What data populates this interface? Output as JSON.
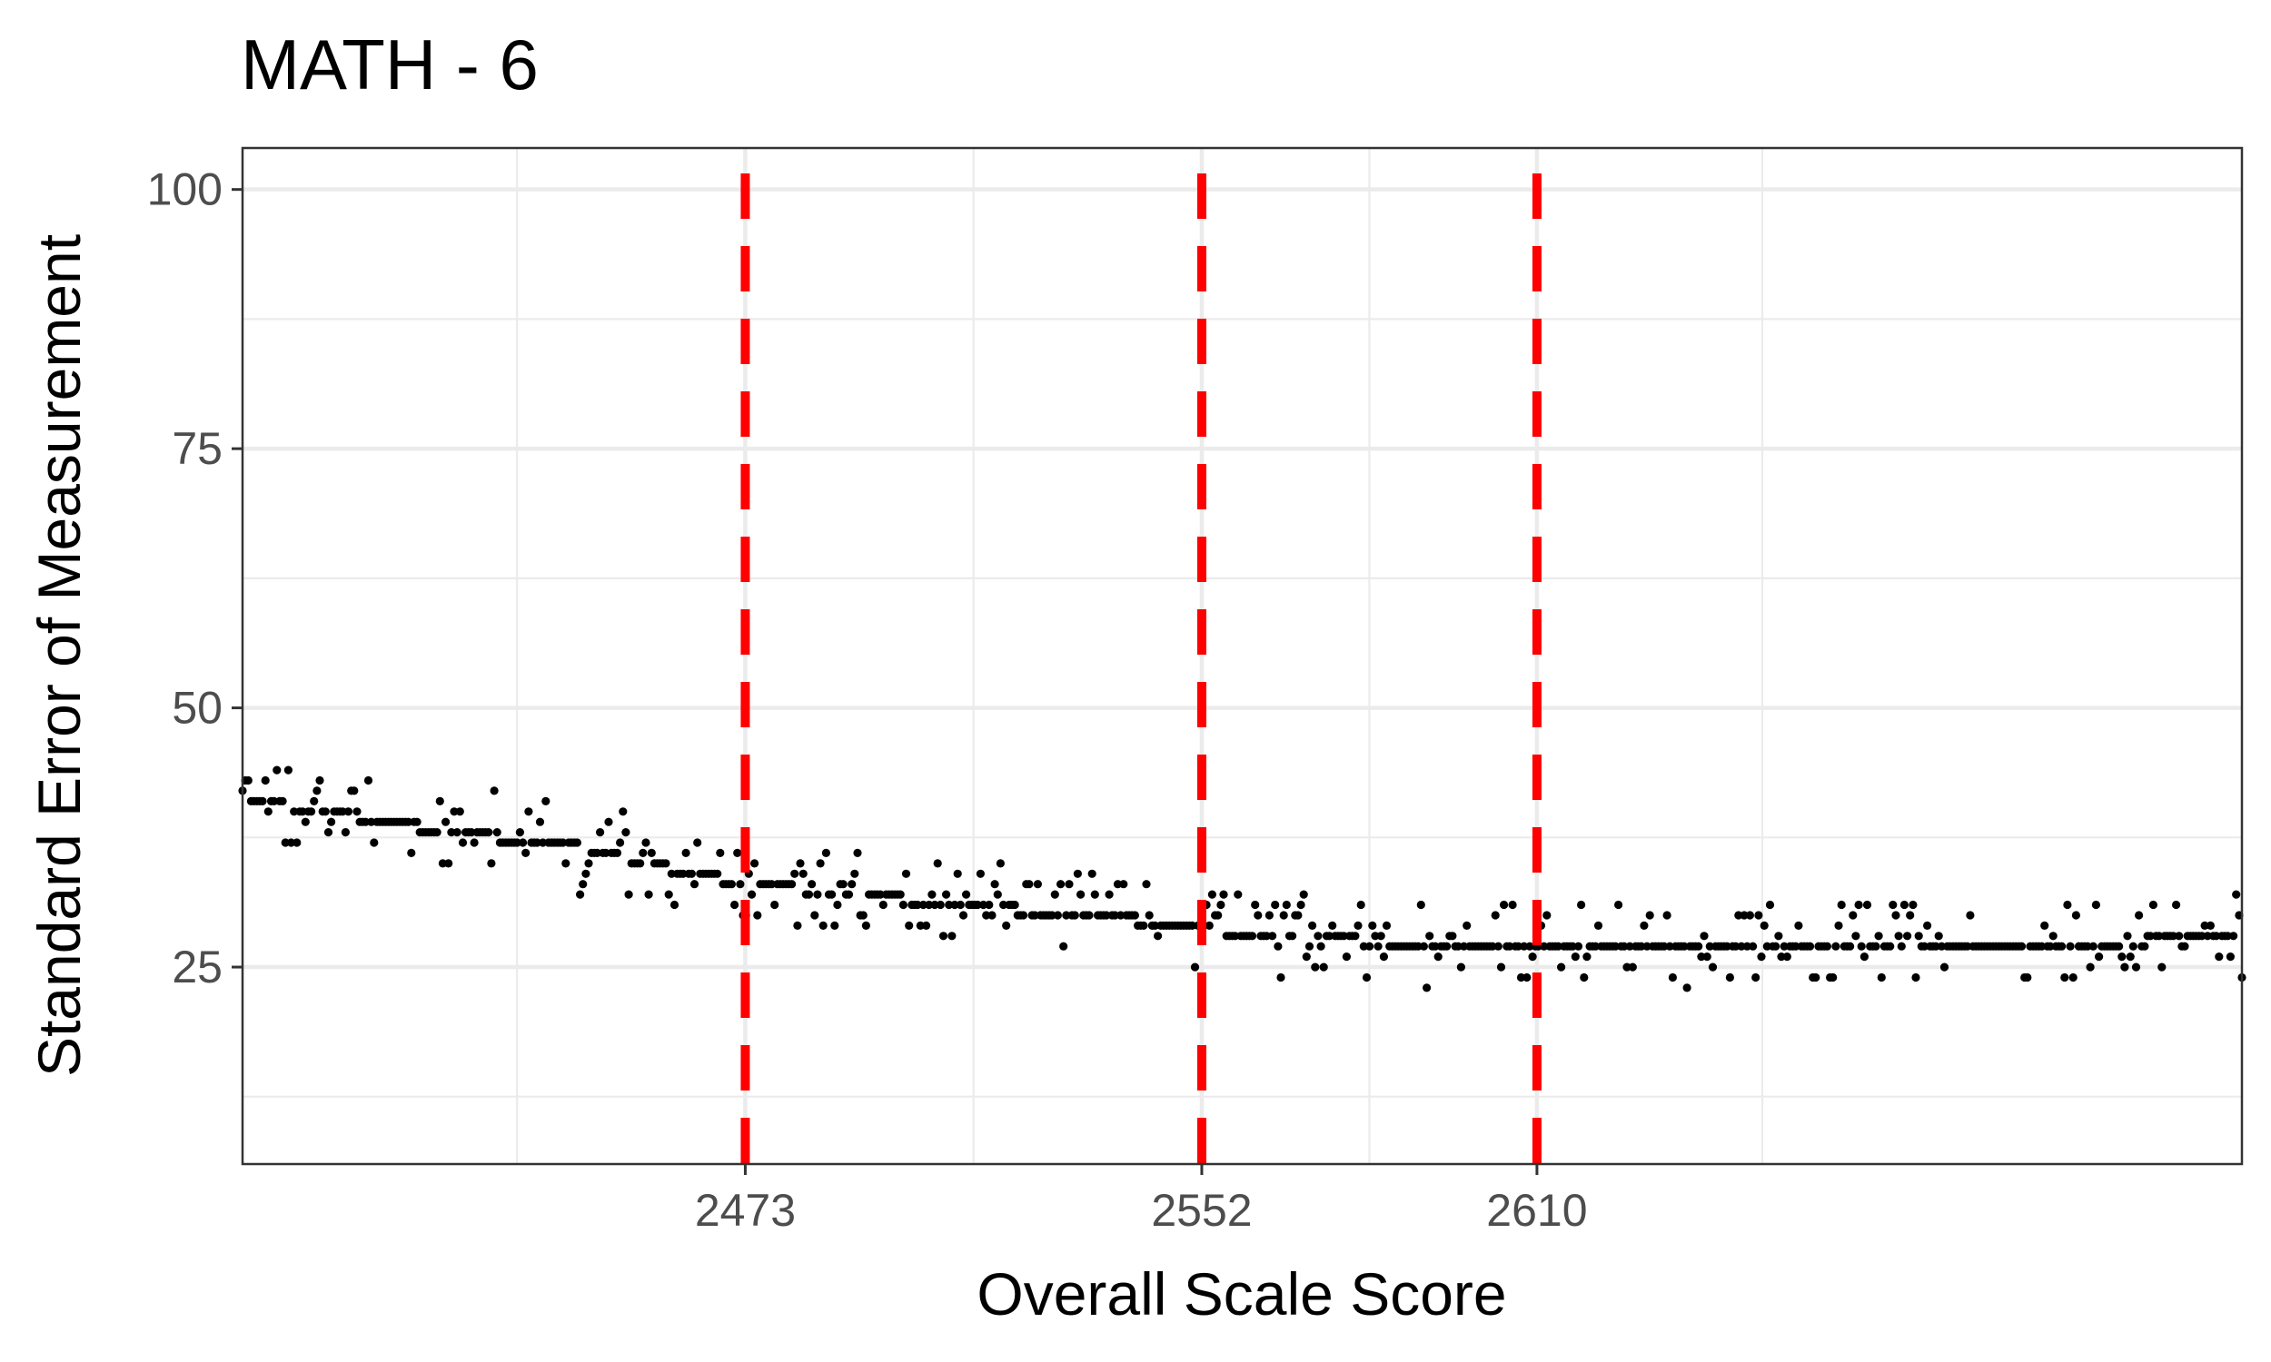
{
  "chart_data": {
    "type": "scatter",
    "title": "MATH - 6",
    "xlabel": "Overall Scale Score",
    "ylabel": "Standard Error of Measurement",
    "xlim": [
      2386,
      2732
    ],
    "ylim": [
      6,
      104
    ],
    "x_ticks": [
      2473,
      2552,
      2610
    ],
    "y_ticks": [
      25,
      50,
      75,
      100
    ],
    "grid": true,
    "cut_scores": [
      2473,
      2552,
      2610
    ],
    "cut_score_color": "#ff0000",
    "point_color": "#000000",
    "trend": [
      [
        2386,
        41
      ],
      [
        2400,
        40
      ],
      [
        2420,
        38
      ],
      [
        2440,
        37
      ],
      [
        2460,
        34.5
      ],
      [
        2473,
        33
      ],
      [
        2490,
        32
      ],
      [
        2510,
        31
      ],
      [
        2530,
        30
      ],
      [
        2552,
        29
      ],
      [
        2560,
        28
      ],
      [
        2580,
        27.5
      ],
      [
        2590,
        27
      ],
      [
        2610,
        27
      ],
      [
        2650,
        27
      ],
      [
        2700,
        27
      ],
      [
        2732,
        28
      ]
    ],
    "band_start": 2386,
    "band_end": 2732,
    "n_points": 700,
    "seed": 42
  }
}
